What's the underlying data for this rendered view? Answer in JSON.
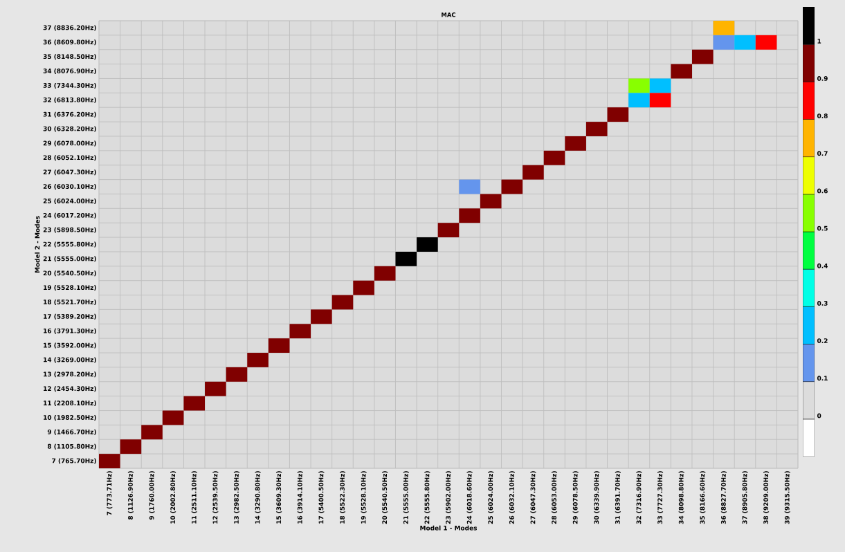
{
  "chart_data": {
    "type": "heatmap",
    "title": "MAC",
    "xlabel": "Model 1 - Modes",
    "ylabel": "Model 2 - Modes",
    "categories": [
      "7 (773.71Hz)",
      "8 (1126.90Hz)",
      "9 (1760.00Hz)",
      "10 (2002.80Hz)",
      "11 (2511.10Hz)",
      "12 (2539.50Hz)",
      "13 (2982.50Hz)",
      "14 (3290.80Hz)",
      "15 (3609.30Hz)",
      "16 (3914.10Hz)",
      "17 (5400.50Hz)",
      "18 (5522.30Hz)",
      "19 (5528.10Hz)",
      "20 (5540.50Hz)",
      "21 (5555.00Hz)",
      "22 (5555.80Hz)",
      "23 (5902.00Hz)",
      "24 (6018.60Hz)",
      "25 (6024.00Hz)",
      "26 (6032.10Hz)",
      "27 (6047.30Hz)",
      "28 (6053.00Hz)",
      "29 (6078.50Hz)",
      "30 (6339.90Hz)",
      "31 (6391.70Hz)",
      "32 (7316.90Hz)",
      "33 (7727.30Hz)",
      "34 (8098.80Hz)",
      "35 (8166.60Hz)",
      "36 (8827.70Hz)",
      "37 (8905.80Hz)",
      "38 (9209.00Hz)",
      "39 (9315.50Hz)"
    ],
    "y_categories": [
      "37 (8836.20Hz)",
      "36 (8609.80Hz)",
      "35 (8148.50Hz)",
      "34 (8076.90Hz)",
      "33 (7344.30Hz)",
      "32 (6813.80Hz)",
      "31 (6376.20Hz)",
      "30 (6328.20Hz)",
      "29 (6078.00Hz)",
      "28 (6052.10Hz)",
      "27 (6047.30Hz)",
      "26 (6030.10Hz)",
      "25 (6024.00Hz)",
      "24 (6017.20Hz)",
      "23 (5898.50Hz)",
      "22 (5555.80Hz)",
      "21 (5555.00Hz)",
      "20 (5540.50Hz)",
      "19 (5528.10Hz)",
      "18 (5521.70Hz)",
      "17 (5389.20Hz)",
      "16 (3791.30Hz)",
      "15 (3592.00Hz)",
      "14 (3269.00Hz)",
      "13 (2978.20Hz)",
      "12 (2454.30Hz)",
      "11 (2208.10Hz)",
      "10 (1982.50Hz)",
      "9 (1466.70Hz)",
      "8 (1105.80Hz)",
      "7 (765.70Hz)"
    ],
    "cells": [
      [
        null,
        null,
        null,
        null,
        null,
        null,
        null,
        null,
        null,
        null,
        null,
        null,
        null,
        null,
        null,
        null,
        null,
        null,
        null,
        null,
        null,
        null,
        null,
        null,
        null,
        null,
        null,
        null,
        null,
        0.75,
        null,
        null,
        null
      ],
      [
        null,
        null,
        null,
        null,
        null,
        null,
        null,
        null,
        null,
        null,
        null,
        null,
        null,
        null,
        null,
        null,
        null,
        null,
        null,
        null,
        null,
        null,
        null,
        null,
        null,
        null,
        null,
        null,
        null,
        0.15,
        0.25,
        0.85,
        null
      ],
      [
        null,
        null,
        null,
        null,
        null,
        null,
        null,
        null,
        null,
        null,
        null,
        null,
        null,
        null,
        null,
        null,
        null,
        null,
        null,
        null,
        null,
        null,
        null,
        null,
        null,
        null,
        null,
        null,
        0.95,
        null,
        null,
        null,
        null
      ],
      [
        null,
        null,
        null,
        null,
        null,
        null,
        null,
        null,
        null,
        null,
        null,
        null,
        null,
        null,
        null,
        null,
        null,
        null,
        null,
        null,
        null,
        null,
        null,
        null,
        null,
        null,
        null,
        0.95,
        null,
        null,
        null,
        null,
        null
      ],
      [
        null,
        null,
        null,
        null,
        null,
        null,
        null,
        null,
        null,
        null,
        null,
        null,
        null,
        null,
        null,
        null,
        null,
        null,
        null,
        null,
        null,
        null,
        null,
        null,
        null,
        0.55,
        0.25,
        null,
        null,
        null,
        null,
        null,
        null
      ],
      [
        null,
        null,
        null,
        null,
        null,
        null,
        null,
        null,
        null,
        null,
        null,
        null,
        null,
        null,
        null,
        null,
        null,
        null,
        null,
        null,
        null,
        null,
        null,
        null,
        null,
        0.25,
        0.85,
        null,
        null,
        null,
        null,
        null,
        null
      ],
      [
        null,
        null,
        null,
        null,
        null,
        null,
        null,
        null,
        null,
        null,
        null,
        null,
        null,
        null,
        null,
        null,
        null,
        null,
        null,
        null,
        null,
        null,
        null,
        null,
        0.95,
        null,
        null,
        null,
        null,
        null,
        null,
        null,
        null
      ],
      [
        null,
        null,
        null,
        null,
        null,
        null,
        null,
        null,
        null,
        null,
        null,
        null,
        null,
        null,
        null,
        null,
        null,
        null,
        null,
        null,
        null,
        null,
        null,
        0.95,
        null,
        null,
        null,
        null,
        null,
        null,
        null,
        null,
        null
      ],
      [
        null,
        null,
        null,
        null,
        null,
        null,
        null,
        null,
        null,
        null,
        null,
        null,
        null,
        null,
        null,
        null,
        null,
        null,
        null,
        null,
        null,
        null,
        0.95,
        null,
        null,
        null,
        null,
        null,
        null,
        null,
        null,
        null,
        null
      ],
      [
        null,
        null,
        null,
        null,
        null,
        null,
        null,
        null,
        null,
        null,
        null,
        null,
        null,
        null,
        null,
        null,
        null,
        null,
        null,
        null,
        null,
        0.95,
        null,
        null,
        null,
        null,
        null,
        null,
        null,
        null,
        null,
        null,
        null
      ],
      [
        null,
        null,
        null,
        null,
        null,
        null,
        null,
        null,
        null,
        null,
        null,
        null,
        null,
        null,
        null,
        null,
        null,
        null,
        null,
        null,
        0.95,
        null,
        null,
        null,
        null,
        null,
        null,
        null,
        null,
        null,
        null,
        null,
        null
      ],
      [
        null,
        null,
        null,
        null,
        null,
        null,
        null,
        null,
        null,
        null,
        null,
        null,
        null,
        null,
        null,
        null,
        null,
        0.15,
        null,
        0.95,
        null,
        null,
        null,
        null,
        null,
        null,
        null,
        null,
        null,
        null,
        null,
        null,
        null
      ],
      [
        null,
        null,
        null,
        null,
        null,
        null,
        null,
        null,
        null,
        null,
        null,
        null,
        null,
        null,
        null,
        null,
        null,
        null,
        0.95,
        null,
        null,
        null,
        null,
        null,
        null,
        null,
        null,
        null,
        null,
        null,
        null,
        null,
        null
      ],
      [
        null,
        null,
        null,
        null,
        null,
        null,
        null,
        null,
        null,
        null,
        null,
        null,
        null,
        null,
        null,
        null,
        null,
        0.95,
        null,
        null,
        null,
        null,
        null,
        null,
        null,
        null,
        null,
        null,
        null,
        null,
        null,
        null,
        null
      ],
      [
        null,
        null,
        null,
        null,
        null,
        null,
        null,
        null,
        null,
        null,
        null,
        null,
        null,
        null,
        null,
        null,
        0.95,
        null,
        null,
        null,
        null,
        null,
        null,
        null,
        null,
        null,
        null,
        null,
        null,
        null,
        null,
        null,
        null
      ],
      [
        null,
        null,
        null,
        null,
        null,
        null,
        null,
        null,
        null,
        null,
        null,
        null,
        null,
        null,
        null,
        1,
        null,
        null,
        null,
        null,
        null,
        null,
        null,
        null,
        null,
        null,
        null,
        null,
        null,
        null,
        null,
        null,
        null
      ],
      [
        null,
        null,
        null,
        null,
        null,
        null,
        null,
        null,
        null,
        null,
        null,
        null,
        null,
        null,
        1,
        null,
        null,
        null,
        null,
        null,
        null,
        null,
        null,
        null,
        null,
        null,
        null,
        null,
        null,
        null,
        null,
        null,
        null
      ],
      [
        null,
        null,
        null,
        null,
        null,
        null,
        null,
        null,
        null,
        null,
        null,
        null,
        null,
        0.95,
        null,
        null,
        null,
        null,
        null,
        null,
        null,
        null,
        null,
        null,
        null,
        null,
        null,
        null,
        null,
        null,
        null,
        null,
        null
      ],
      [
        null,
        null,
        null,
        null,
        null,
        null,
        null,
        null,
        null,
        null,
        null,
        null,
        0.95,
        null,
        null,
        null,
        null,
        null,
        null,
        null,
        null,
        null,
        null,
        null,
        null,
        null,
        null,
        null,
        null,
        null,
        null,
        null,
        null
      ],
      [
        null,
        null,
        null,
        null,
        null,
        null,
        null,
        null,
        null,
        null,
        null,
        0.95,
        null,
        null,
        null,
        null,
        null,
        null,
        null,
        null,
        null,
        null,
        null,
        null,
        null,
        null,
        null,
        null,
        null,
        null,
        null,
        null,
        null
      ],
      [
        null,
        null,
        null,
        null,
        null,
        null,
        null,
        null,
        null,
        null,
        0.95,
        null,
        null,
        null,
        null,
        null,
        null,
        null,
        null,
        null,
        null,
        null,
        null,
        null,
        null,
        null,
        null,
        null,
        null,
        null,
        null,
        null,
        null
      ],
      [
        null,
        null,
        null,
        null,
        null,
        null,
        null,
        null,
        null,
        0.95,
        null,
        null,
        null,
        null,
        null,
        null,
        null,
        null,
        null,
        null,
        null,
        null,
        null,
        null,
        null,
        null,
        null,
        null,
        null,
        null,
        null,
        null,
        null
      ],
      [
        null,
        null,
        null,
        null,
        null,
        null,
        null,
        null,
        0.95,
        null,
        null,
        null,
        null,
        null,
        null,
        null,
        null,
        null,
        null,
        null,
        null,
        null,
        null,
        null,
        null,
        null,
        null,
        null,
        null,
        null,
        null,
        null,
        null
      ],
      [
        null,
        null,
        null,
        null,
        null,
        null,
        null,
        0.95,
        null,
        null,
        null,
        null,
        null,
        null,
        null,
        null,
        null,
        null,
        null,
        null,
        null,
        null,
        null,
        null,
        null,
        null,
        null,
        null,
        null,
        null,
        null,
        null,
        null
      ],
      [
        null,
        null,
        null,
        null,
        null,
        null,
        0.95,
        null,
        null,
        null,
        null,
        null,
        null,
        null,
        null,
        null,
        null,
        null,
        null,
        null,
        null,
        null,
        null,
        null,
        null,
        null,
        null,
        null,
        null,
        null,
        null,
        null,
        null
      ],
      [
        null,
        null,
        null,
        null,
        null,
        0.95,
        null,
        null,
        null,
        null,
        null,
        null,
        null,
        null,
        null,
        null,
        null,
        null,
        null,
        null,
        null,
        null,
        null,
        null,
        null,
        null,
        null,
        null,
        null,
        null,
        null,
        null,
        null
      ],
      [
        null,
        null,
        null,
        null,
        0.95,
        null,
        null,
        null,
        null,
        null,
        null,
        null,
        null,
        null,
        null,
        null,
        null,
        null,
        null,
        null,
        null,
        null,
        null,
        null,
        null,
        null,
        null,
        null,
        null,
        null,
        null,
        null,
        null
      ],
      [
        null,
        null,
        null,
        0.95,
        null,
        null,
        null,
        null,
        null,
        null,
        null,
        null,
        null,
        null,
        null,
        null,
        null,
        null,
        null,
        null,
        null,
        null,
        null,
        null,
        null,
        null,
        null,
        null,
        null,
        null,
        null,
        null,
        null
      ],
      [
        null,
        null,
        0.95,
        null,
        null,
        null,
        null,
        null,
        null,
        null,
        null,
        null,
        null,
        null,
        null,
        null,
        null,
        null,
        null,
        null,
        null,
        null,
        null,
        null,
        null,
        null,
        null,
        null,
        null,
        null,
        null,
        null,
        null
      ],
      [
        null,
        0.95,
        null,
        null,
        null,
        null,
        null,
        null,
        null,
        null,
        null,
        null,
        null,
        null,
        null,
        null,
        null,
        null,
        null,
        null,
        null,
        null,
        null,
        null,
        null,
        null,
        null,
        null,
        null,
        null,
        null,
        null,
        null
      ],
      [
        0.95,
        null,
        null,
        null,
        null,
        null,
        null,
        null,
        null,
        null,
        null,
        null,
        null,
        null,
        null,
        null,
        null,
        null,
        null,
        null,
        null,
        null,
        null,
        null,
        null,
        null,
        null,
        null,
        null,
        null,
        null,
        null,
        null
      ]
    ],
    "clim": [
      -0.1,
      1.1
    ],
    "cticks": [
      0,
      0.1,
      0.2,
      0.3,
      0.4,
      0.5,
      0.6,
      0.7,
      0.8,
      0.9,
      1
    ],
    "grid": true
  }
}
